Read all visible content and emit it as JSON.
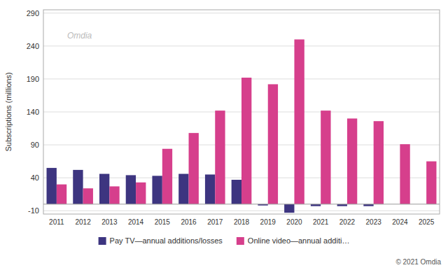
{
  "chart_data": {
    "type": "bar",
    "categories": [
      "2011",
      "2012",
      "2013",
      "2014",
      "2015",
      "2016",
      "2017",
      "2018",
      "2019",
      "2020",
      "2021",
      "2022",
      "2023",
      "2024",
      "2025"
    ],
    "series": [
      {
        "name": "Pay TV—annual additions/losses",
        "color": "#3d3580",
        "values": [
          55,
          52,
          46,
          44,
          43,
          46,
          45,
          37,
          -2,
          -13,
          -3,
          -3,
          -3,
          null,
          null
        ]
      },
      {
        "name": "Online video—annual additi…",
        "color": "#d63f8c",
        "values": [
          30,
          24,
          27,
          33,
          84,
          108,
          142,
          192,
          182,
          250,
          142,
          130,
          126,
          91,
          65
        ]
      }
    ],
    "ylabel": "Subscriptions (millions)",
    "ylim": [
      -15,
      295
    ],
    "yticks": [
      -10,
      40,
      90,
      140,
      190,
      240,
      290
    ],
    "grid": true,
    "legend": "bottom",
    "annotations": [
      "© 2021 Omdia",
      "Omdia"
    ]
  }
}
